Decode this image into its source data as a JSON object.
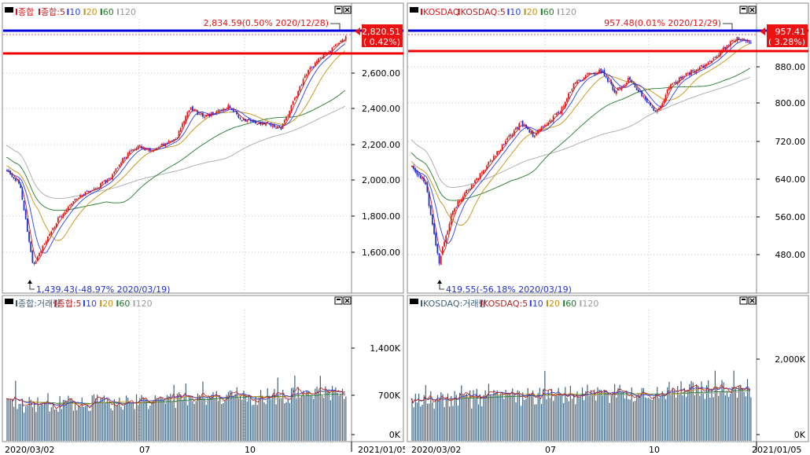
{
  "colors": {
    "up": "#ee1111",
    "down": "#1f2fd6",
    "ma5": "#c21c1c",
    "ma10": "#2b3ff0",
    "ma20": "#c89010",
    "ma60": "#1f7a2a",
    "ma120": "#a8a8a8",
    "volume": "#3c5f7d",
    "resistance": "#0000dd",
    "support": "#ee0000",
    "grid": "#c8c8c8"
  },
  "panels": [
    {
      "id": "kospi",
      "price_legend": [
        "종합",
        "종합:5",
        "10",
        "20",
        "60",
        "120"
      ],
      "volume_legend": [
        "종합:거래량",
        "종합:5",
        "10",
        "20",
        "60",
        "120"
      ],
      "price_ticks": [
        "2,600.00",
        "2,400.00",
        "2,200.00",
        "2,000.00",
        "1,800.00",
        "1,600.00"
      ],
      "volume_ticks": [
        "1,400K",
        "700K",
        "0K"
      ],
      "date_labels": [
        "2020/03/02",
        "07",
        "10",
        "2021/01/05"
      ],
      "high_note": "2,834.59(0.50% 2020/12/28)",
      "low_note": "1,439.43(-48.97% 2020/03/19)",
      "last_price": "2,820.51",
      "last_change": "( 0.42%)"
    },
    {
      "id": "kosdaq",
      "price_legend": [
        "KOSDAQ",
        "KOSDAQ:5",
        "10",
        "20",
        "60",
        "120"
      ],
      "volume_legend": [
        "KOSDAQ:거래량",
        "KOSDAQ:5",
        "10",
        "20",
        "60",
        "120"
      ],
      "price_ticks": [
        "880.00",
        "800.00",
        "720.00",
        "640.00",
        "560.00",
        "480.00"
      ],
      "volume_ticks": [
        "2,000K",
        "0K"
      ],
      "date_labels": [
        "2020/03/02",
        "07",
        "10",
        "2021/01/05"
      ],
      "high_note": "957.48(0.01% 2020/12/29)",
      "low_note": "419.55(-56.18% 2020/03/19)",
      "last_price": "957.41",
      "last_change": "( 3.28%)"
    }
  ],
  "chart_data": [
    {
      "type": "candlestick",
      "index": "KOSPI",
      "period": [
        "2020/03/02",
        "2021/01/05"
      ],
      "series": [
        {
          "name": "종합",
          "points": [
            [
              "2020/03/02",
              2010
            ],
            [
              "2020/03/19",
              1439.43
            ],
            [
              "2020/04/15",
              1860
            ],
            [
              "2020/05/20",
              1980
            ],
            [
              "2020/06/10",
              2180
            ],
            [
              "2020/07/15",
              2190
            ],
            [
              "2020/08/12",
              2420
            ],
            [
              "2020/09/15",
              2440
            ],
            [
              "2020/10/15",
              2370
            ],
            [
              "2020/10/30",
              2270
            ],
            [
              "2020/11/20",
              2550
            ],
            [
              "2020/12/04",
              2730
            ],
            [
              "2020/12/28",
              2834.59
            ],
            [
              "2021/01/05",
              2820.51
            ]
          ]
        }
      ],
      "ylim": [
        1440,
        2840
      ]
    },
    {
      "type": "candlestick",
      "index": "KOSDAQ",
      "period": [
        "2020/03/02",
        "2021/01/05"
      ],
      "series": [
        {
          "name": "KOSDAQ",
          "points": [
            [
              "2020/03/02",
              650
            ],
            [
              "2020/03/19",
              419.55
            ],
            [
              "2020/04/15",
              600
            ],
            [
              "2020/05/20",
              700
            ],
            [
              "2020/06/10",
              745
            ],
            [
              "2020/07/15",
              760
            ],
            [
              "2020/08/12",
              862
            ],
            [
              "2020/09/15",
              888
            ],
            [
              "2020/10/15",
              830
            ],
            [
              "2020/10/30",
              775
            ],
            [
              "2020/11/20",
              858
            ],
            [
              "2020/12/04",
              900
            ],
            [
              "2020/12/29",
              957.48
            ],
            [
              "2021/01/05",
              957.41
            ]
          ]
        }
      ],
      "ylim": [
        420,
        960
      ]
    }
  ]
}
